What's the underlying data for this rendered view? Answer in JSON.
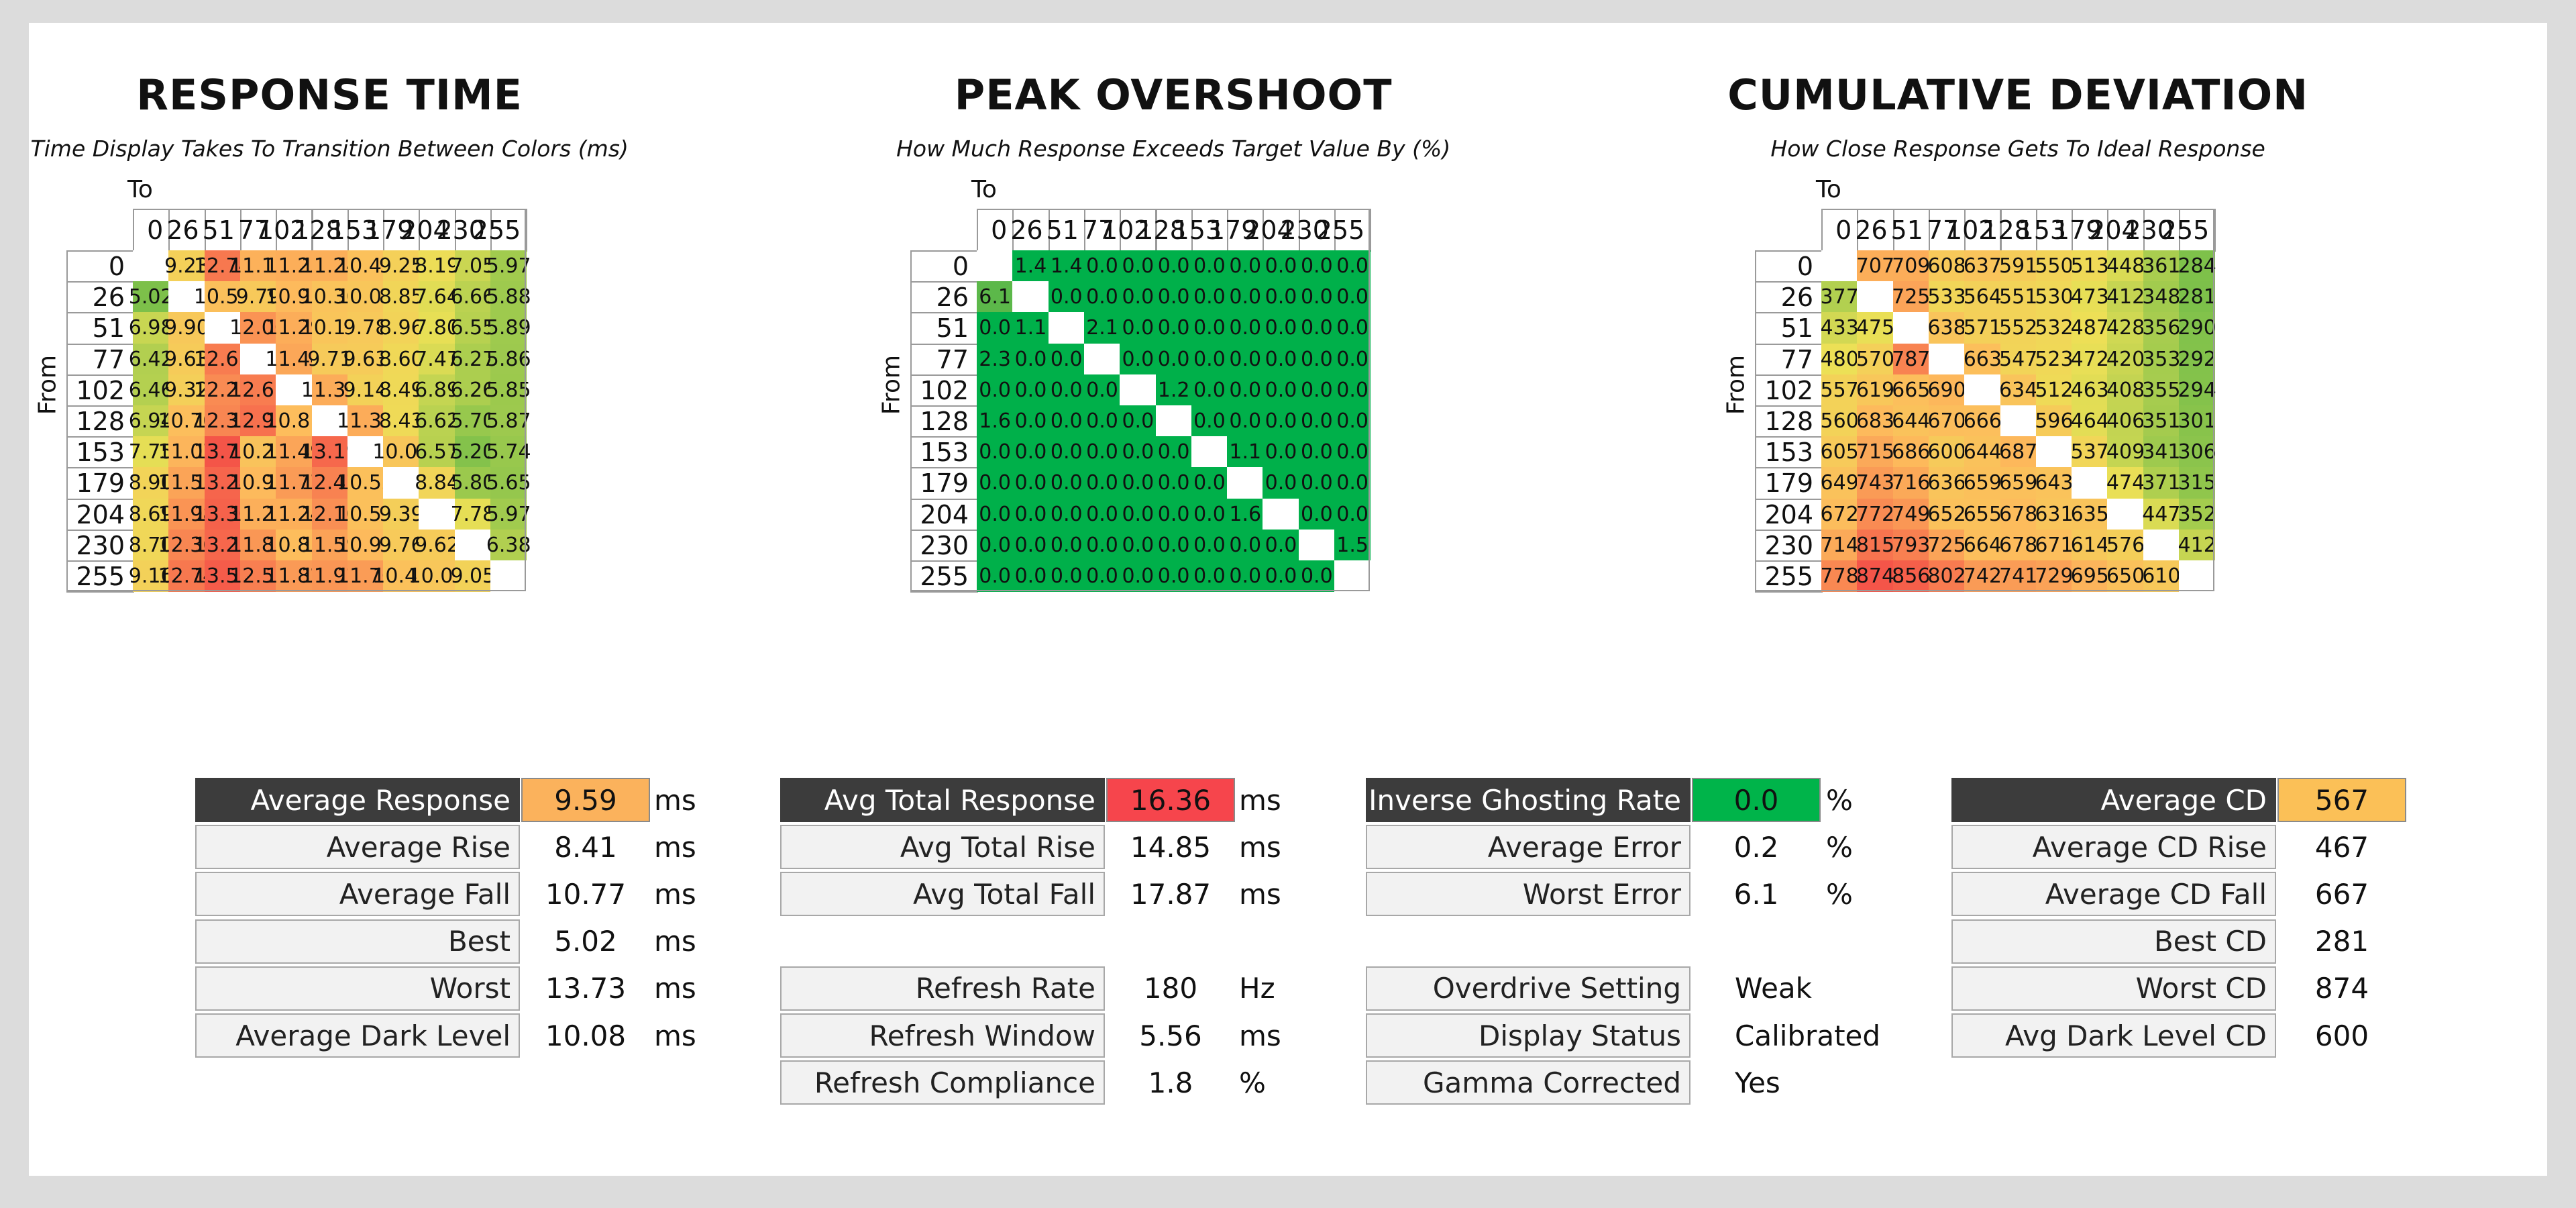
{
  "chart_data": [
    {
      "type": "heatmap",
      "title": "RESPONSE TIME",
      "subtitle": "Time Display Takes To Transition Between Colors (ms)",
      "xlabel": "To",
      "ylabel": "From",
      "x": [
        "0",
        "26",
        "51",
        "77",
        "102",
        "128",
        "153",
        "179",
        "204",
        "230",
        "255"
      ],
      "y": [
        "0",
        "26",
        "51",
        "77",
        "102",
        "128",
        "153",
        "179",
        "204",
        "230",
        "255"
      ],
      "values": [
        [
          null,
          "9.23",
          "12.74",
          "11.17",
          "11.25",
          "11.24",
          "10.49",
          "9.25",
          "8.19",
          "7.05",
          "5.97"
        ],
        [
          "5.02",
          null,
          "10.59",
          "9.79",
          "10.91",
          "10.30",
          "10.07",
          "8.85",
          "7.64",
          "6.66",
          "5.88"
        ],
        [
          "6.98",
          "9.90",
          null,
          "12.00",
          "11.29",
          "10.11",
          "9.78",
          "8.96",
          "7.80",
          "6.55",
          "5.89"
        ],
        [
          "6.42",
          "9.63",
          "12.63",
          null,
          "11.44",
          "9.71",
          "9.63",
          "8.60",
          "7.47",
          "6.27",
          "5.86"
        ],
        [
          "6.46",
          "9.32",
          "12.21",
          "12.63",
          null,
          "11.30",
          "9.14",
          "8.49",
          "6.89",
          "6.26",
          "5.85"
        ],
        [
          "6.94",
          "10.70",
          "12.35",
          "12.93",
          "10.81",
          null,
          "11.32",
          "8.43",
          "6.62",
          "5.70",
          "5.87"
        ],
        [
          "7.75",
          "11.07",
          "13.73",
          "10.26",
          "11.49",
          "13.19",
          null,
          "10.04",
          "6.57",
          "5.20",
          "5.74"
        ],
        [
          "8.90",
          "11.53",
          "13.28",
          "10.91",
          "11.77",
          "12.47",
          "10.52",
          null,
          "8.84",
          "5.80",
          "5.65"
        ],
        [
          "8.69",
          "11.98",
          "13.36",
          "11.22",
          "11.24",
          "12.10",
          "10.52",
          "9.39",
          null,
          "7.78",
          "5.97"
        ],
        [
          "8.70",
          "12.36",
          "13.23",
          "11.88",
          "10.81",
          "11.59",
          "10.93",
          "9.76",
          "9.62",
          null,
          "6.38"
        ],
        [
          "9.16",
          "12.74",
          "13.52",
          "12.55",
          "11.82",
          "11.92",
          "11.76",
          "10.46",
          "10.01",
          "9.05",
          null
        ]
      ]
    },
    {
      "type": "heatmap",
      "title": "PEAK OVERSHOOT",
      "subtitle": "How Much Response Exceeds Target Value By (%)",
      "xlabel": "To",
      "ylabel": "From",
      "x": [
        "0",
        "26",
        "51",
        "77",
        "102",
        "128",
        "153",
        "179",
        "204",
        "230",
        "255"
      ],
      "y": [
        "0",
        "26",
        "51",
        "77",
        "102",
        "128",
        "153",
        "179",
        "204",
        "230",
        "255"
      ],
      "values": [
        [
          null,
          "1.4",
          "1.4",
          "0.0",
          "0.0",
          "0.0",
          "0.0",
          "0.0",
          "0.0",
          "0.0",
          "0.0"
        ],
        [
          "6.1",
          null,
          "0.0",
          "0.0",
          "0.0",
          "0.0",
          "0.0",
          "0.0",
          "0.0",
          "0.0",
          "0.0"
        ],
        [
          "0.0",
          "1.1",
          null,
          "2.1",
          "0.0",
          "0.0",
          "0.0",
          "0.0",
          "0.0",
          "0.0",
          "0.0"
        ],
        [
          "2.3",
          "0.0",
          "0.0",
          null,
          "0.0",
          "0.0",
          "0.0",
          "0.0",
          "0.0",
          "0.0",
          "0.0"
        ],
        [
          "0.0",
          "0.0",
          "0.0",
          "0.0",
          null,
          "1.2",
          "0.0",
          "0.0",
          "0.0",
          "0.0",
          "0.0"
        ],
        [
          "1.6",
          "0.0",
          "0.0",
          "0.0",
          "0.0",
          null,
          "0.0",
          "0.0",
          "0.0",
          "0.0",
          "0.0"
        ],
        [
          "0.0",
          "0.0",
          "0.0",
          "0.0",
          "0.0",
          "0.0",
          null,
          "1.1",
          "0.0",
          "0.0",
          "0.0"
        ],
        [
          "0.0",
          "0.0",
          "0.0",
          "0.0",
          "0.0",
          "0.0",
          "0.0",
          null,
          "0.0",
          "0.0",
          "0.0"
        ],
        [
          "0.0",
          "0.0",
          "0.0",
          "0.0",
          "0.0",
          "0.0",
          "0.0",
          "1.6",
          null,
          "0.0",
          "0.0"
        ],
        [
          "0.0",
          "0.0",
          "0.0",
          "0.0",
          "0.0",
          "0.0",
          "0.0",
          "0.0",
          "0.0",
          null,
          "1.5"
        ],
        [
          "0.0",
          "0.0",
          "0.0",
          "0.0",
          "0.0",
          "0.0",
          "0.0",
          "0.0",
          "0.0",
          "0.0",
          null
        ]
      ]
    },
    {
      "type": "heatmap",
      "title": "CUMULATIVE DEVIATION",
      "subtitle": "How Close Response Gets To Ideal Response",
      "xlabel": "To",
      "ylabel": "From",
      "x": [
        "0",
        "26",
        "51",
        "77",
        "102",
        "128",
        "153",
        "179",
        "204",
        "230",
        "255"
      ],
      "y": [
        "0",
        "26",
        "51",
        "77",
        "102",
        "128",
        "153",
        "179",
        "204",
        "230",
        "255"
      ],
      "values": [
        [
          null,
          "707",
          "709",
          "608",
          "637",
          "591",
          "550",
          "513",
          "448",
          "361",
          "284"
        ],
        [
          "377",
          null,
          "725",
          "533",
          "564",
          "551",
          "530",
          "473",
          "412",
          "348",
          "281"
        ],
        [
          "433",
          "475",
          null,
          "638",
          "571",
          "552",
          "532",
          "487",
          "428",
          "356",
          "290"
        ],
        [
          "480",
          "570",
          "787",
          null,
          "663",
          "547",
          "523",
          "472",
          "420",
          "353",
          "292"
        ],
        [
          "557",
          "619",
          "665",
          "690",
          null,
          "634",
          "512",
          "463",
          "408",
          "355",
          "294"
        ],
        [
          "560",
          "683",
          "644",
          "670",
          "666",
          null,
          "596",
          "464",
          "406",
          "351",
          "301"
        ],
        [
          "605",
          "715",
          "686",
          "600",
          "644",
          "687",
          null,
          "537",
          "409",
          "341",
          "306"
        ],
        [
          "649",
          "743",
          "716",
          "636",
          "659",
          "659",
          "643",
          null,
          "474",
          "371",
          "315"
        ],
        [
          "672",
          "772",
          "749",
          "652",
          "655",
          "678",
          "631",
          "635",
          null,
          "447",
          "352"
        ],
        [
          "714",
          "815",
          "793",
          "725",
          "664",
          "678",
          "671",
          "614",
          "576",
          null,
          "412"
        ],
        [
          "778",
          "874",
          "856",
          "802",
          "742",
          "741",
          "729",
          "695",
          "650",
          "610",
          null
        ]
      ]
    }
  ],
  "stats": [
    {
      "rows": [
        {
          "label": "Average Response",
          "value": "9.59",
          "unit": "ms",
          "highlight": "#fbb25c"
        },
        {
          "label": "Average Rise",
          "value": "8.41",
          "unit": "ms"
        },
        {
          "label": "Average Fall",
          "value": "10.77",
          "unit": "ms"
        },
        {
          "label": "Best",
          "value": "5.02",
          "unit": "ms"
        },
        {
          "label": "Worst",
          "value": "13.73",
          "unit": "ms"
        },
        {
          "label": "Average Dark Level",
          "value": "10.08",
          "unit": "ms"
        }
      ]
    },
    {
      "rows": [
        {
          "label": "Avg Total Response",
          "value": "16.36",
          "unit": "ms",
          "highlight": "#f6454c"
        },
        {
          "label": "Avg Total Rise",
          "value": "14.85",
          "unit": "ms"
        },
        {
          "label": "Avg Total Fall",
          "value": "17.87",
          "unit": "ms"
        },
        {
          "gap": true
        },
        {
          "label": "Refresh Rate",
          "value": "180",
          "unit": "Hz"
        },
        {
          "label": "Refresh Window",
          "value": "5.56",
          "unit": "ms"
        },
        {
          "label": "Refresh Compliance",
          "value": "1.8",
          "unit": "%"
        }
      ]
    },
    {
      "rows": [
        {
          "label": "Inverse Ghosting Rate",
          "value": "0.0",
          "unit": "%",
          "highlight": "#00b44a"
        },
        {
          "label": "Average Error",
          "value": "0.2",
          "unit": "%"
        },
        {
          "label": "Worst Error",
          "value": "6.1",
          "unit": "%"
        },
        {
          "gap": true
        },
        {
          "label": "Overdrive Setting",
          "value": "Weak",
          "unit": ""
        },
        {
          "label": "Display Status",
          "value": "Calibrated",
          "unit": ""
        },
        {
          "label": "Gamma Corrected",
          "value": "Yes",
          "unit": ""
        }
      ]
    },
    {
      "rows": [
        {
          "label": "Average CD",
          "value": "567",
          "unit": "",
          "highlight": "#fbc057"
        },
        {
          "label": "Average CD Rise",
          "value": "467",
          "unit": ""
        },
        {
          "label": "Average CD Fall",
          "value": "667",
          "unit": ""
        },
        {
          "label": "Best CD",
          "value": "281",
          "unit": ""
        },
        {
          "label": "Worst CD",
          "value": "874",
          "unit": ""
        },
        {
          "label": "Avg Dark Level CD",
          "value": "600",
          "unit": ""
        }
      ]
    }
  ]
}
